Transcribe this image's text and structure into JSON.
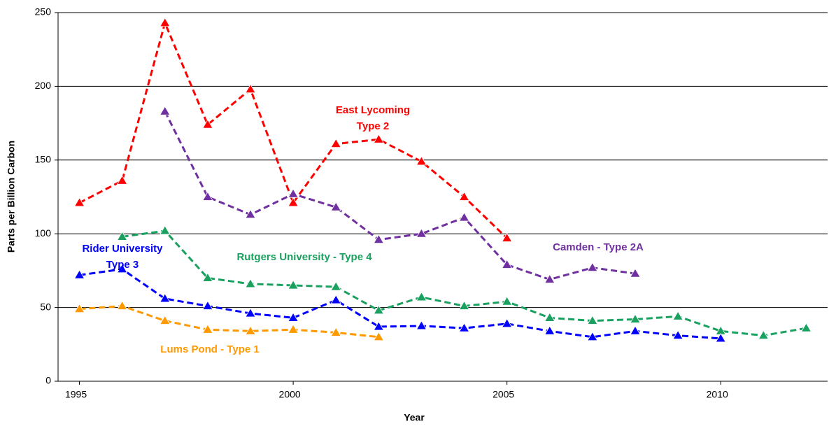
{
  "chart_data": {
    "type": "line",
    "x_label": "Year",
    "y_label": "Parts per Billion Carbon",
    "x": [
      1995,
      1996,
      1997,
      1998,
      1999,
      2000,
      2001,
      2002,
      2003,
      2004,
      2005,
      2006,
      2007,
      2008,
      2009,
      2010,
      2011,
      2012
    ],
    "xlim": [
      1994.5,
      2012.5
    ],
    "xticks": [
      1995,
      2000,
      2005,
      2010
    ],
    "ylim": [
      0,
      250
    ],
    "yticks": [
      0,
      50,
      100,
      150,
      200,
      250
    ],
    "grid": true,
    "series": [
      {
        "name": [
          "East Lycoming",
          "Type 2"
        ],
        "color": "#ff0000",
        "values": [
          121,
          136,
          243,
          174,
          198,
          121,
          161,
          164,
          149,
          125,
          97,
          null,
          null,
          null,
          null,
          null,
          null,
          null
        ]
      },
      {
        "name": [
          "Camden - Type 2A"
        ],
        "color": "#7030a0",
        "values": [
          null,
          null,
          183,
          125,
          113,
          127,
          118,
          96,
          100,
          111,
          79,
          69,
          77,
          73,
          null,
          null,
          null,
          null
        ]
      },
      {
        "name": [
          "Rutgers University  - Type 4"
        ],
        "color": "#1aa160",
        "values": [
          null,
          98,
          102,
          70,
          66,
          65,
          64,
          48,
          57,
          51,
          54,
          43,
          41,
          42,
          44,
          34,
          31,
          36
        ]
      },
      {
        "name": [
          "Rider University",
          "Type 3"
        ],
        "color": "#0000ff",
        "values": [
          72,
          76,
          56,
          51,
          46,
          43,
          55,
          37,
          37.5,
          36,
          39,
          34,
          30,
          34,
          31,
          29,
          null,
          null
        ]
      },
      {
        "name": [
          "Lums Pond - Type 1"
        ],
        "color": "#ff9900",
        "values": [
          49,
          51,
          41,
          35,
          34,
          35,
          33,
          30,
          null,
          null,
          null,
          null,
          null,
          null,
          null,
          null,
          null,
          null
        ]
      }
    ]
  }
}
